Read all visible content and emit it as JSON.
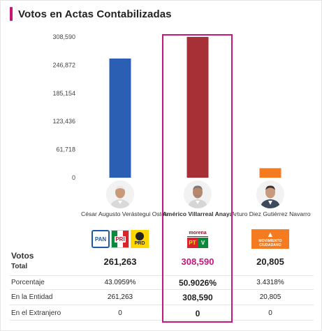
{
  "header": {
    "title": "Votos en Actas Contabilizadas"
  },
  "chart_data": {
    "type": "bar",
    "title": "Votos en Actas Contabilizadas",
    "categories": [
      "César Augusto Verástegui Ostos",
      "Américo Villarreal Anaya",
      "Arturo Diez Gutiérrez Navarro"
    ],
    "values": [
      261263,
      308590,
      20805
    ],
    "ylim": [
      0,
      308590
    ],
    "yticks": [
      "308,590",
      "246,872",
      "185,154",
      "123,436",
      "61,718",
      "0"
    ],
    "ytick_values": [
      308590,
      246872,
      185154,
      123436,
      61718,
      0
    ],
    "colors": [
      "#2b5fb4",
      "#a73037",
      "#f47b20"
    ],
    "grid": false
  },
  "candidates": [
    {
      "name": "César Augusto Verástegui Ostos",
      "parties": [
        "PAN",
        "PRI",
        "PRD"
      ]
    },
    {
      "name": "Américo Villarreal Anaya",
      "parties": [
        "morena",
        "PT",
        "PVEM"
      ]
    },
    {
      "name": "Arturo Diez Gutiérrez Navarro",
      "parties": [
        "MOVIMIENTO CIUDADANO"
      ]
    }
  ],
  "logos": {
    "pan": "PAN",
    "pri": "PRI",
    "prd": "PRD",
    "morena": "morena",
    "pt": "PT",
    "pv": "V",
    "mc": "MOVIMIENTO CIUDADANO"
  },
  "table": {
    "votos_label": "Votos",
    "total_label": "Total",
    "total": [
      "261,263",
      "308,590",
      "20,805"
    ],
    "porcentaje_label": "Porcentaje",
    "porcentaje": [
      "43.0959%",
      "50.9026%",
      "3.4318%"
    ],
    "entidad_label": "En la Entidad",
    "entidad": [
      "261,263",
      "308,590",
      "20,805"
    ],
    "extranjero_label": "En el Extranjero",
    "extranjero": [
      "0",
      "0",
      "0"
    ]
  },
  "colors": {
    "accent": "#c2187e",
    "winner_text": "#c2187e"
  }
}
